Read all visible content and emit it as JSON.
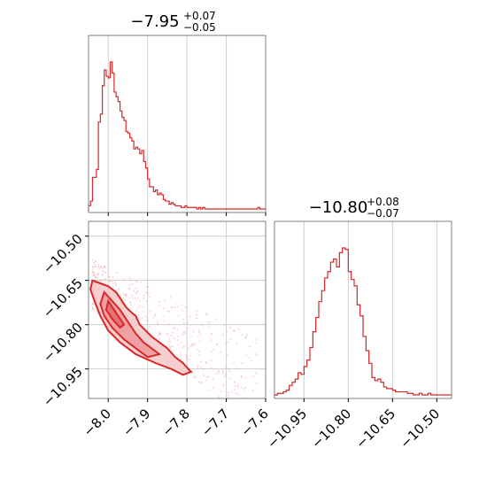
{
  "chart_data": [
    {
      "type": "histogram",
      "panel": "top-left",
      "title": {
        "value": "−7.95",
        "upper": "+0.07",
        "lower": "−0.05"
      },
      "x_range": [
        -8.05,
        -7.6
      ],
      "x_ticks": [
        -8.0,
        -7.9,
        -7.8,
        -7.7,
        -7.6
      ],
      "grid": true,
      "color": "#d62728",
      "bin_edges": [
        -8.05,
        -8.045,
        -8.04,
        -8.035,
        -8.03,
        -8.025,
        -8.02,
        -8.015,
        -8.01,
        -8.005,
        -8.0,
        -7.995,
        -7.99,
        -7.985,
        -7.98,
        -7.975,
        -7.97,
        -7.965,
        -7.96,
        -7.955,
        -7.95,
        -7.945,
        -7.94,
        -7.935,
        -7.93,
        -7.925,
        -7.92,
        -7.915,
        -7.91,
        -7.905,
        -7.9,
        -7.895,
        -7.89,
        -7.885,
        -7.88,
        -7.875,
        -7.87,
        -7.865,
        -7.86,
        -7.855,
        -7.85,
        -7.845,
        -7.84,
        -7.835,
        -7.83,
        -7.825,
        -7.82,
        -7.815,
        -7.81,
        -7.805,
        -7.8,
        -7.795,
        -7.79,
        -7.785,
        -7.78,
        -7.775,
        -7.77,
        -7.765,
        -7.76,
        -7.755,
        -7.75,
        -7.745,
        -7.74,
        -7.735,
        -7.73,
        -7.725,
        -7.72,
        -7.715,
        -7.71,
        -7.705,
        -7.7,
        -7.695,
        -7.69,
        -7.685,
        -7.68,
        -7.675,
        -7.67,
        -7.665,
        -7.66,
        -7.655,
        -7.65,
        -7.645,
        -7.64,
        -7.635,
        -7.63,
        -7.625,
        -7.62,
        -7.615,
        -7.61,
        -7.605,
        -7.6
      ],
      "counts": [
        0.02,
        0.05,
        0.2,
        0.2,
        0.25,
        0.55,
        0.6,
        0.78,
        0.88,
        0.84,
        0.83,
        0.93,
        0.86,
        0.74,
        0.71,
        0.68,
        0.62,
        0.58,
        0.56,
        0.49,
        0.48,
        0.45,
        0.43,
        0.38,
        0.39,
        0.38,
        0.35,
        0.37,
        0.3,
        0.26,
        0.19,
        0.14,
        0.14,
        0.11,
        0.12,
        0.09,
        0.1,
        0.09,
        0.06,
        0.05,
        0.05,
        0.03,
        0.04,
        0.03,
        0.02,
        0.02,
        0.02,
        0.01,
        0.01,
        0.02,
        0.01,
        0.01,
        0.01,
        0.01,
        0.01,
        0.0,
        0.01,
        0.0,
        0.01,
        0.0,
        0.0,
        0.0,
        0.0,
        0.0,
        0.0,
        0.0,
        0.0,
        0.0,
        0.0,
        0.0,
        0.0,
        0.0,
        0.0,
        0.0,
        0.0,
        0.0,
        0.0,
        0.0,
        0.0,
        0.0,
        0.0,
        0.0,
        0.0,
        0.0,
        0.0,
        0.0,
        0.01,
        0.0,
        0.0,
        0.0
      ]
    },
    {
      "type": "histogram",
      "panel": "bottom-right",
      "title": {
        "value": "−10.80",
        "upper": "+0.08",
        "lower": "−0.07"
      },
      "x_range": [
        -11.05,
        -10.45
      ],
      "x_ticks": [
        -10.95,
        -10.8,
        -10.65,
        -10.5
      ],
      "x_tick_labels": [
        "−10.95",
        "−10.80",
        "−10.65",
        "−10.50"
      ],
      "grid": true,
      "color": "#d62728",
      "bin_edges": [
        -11.05,
        -11.04,
        -11.03,
        -11.02,
        -11.01,
        -11.0,
        -10.99,
        -10.98,
        -10.97,
        -10.96,
        -10.95,
        -10.94,
        -10.93,
        -10.92,
        -10.91,
        -10.9,
        -10.89,
        -10.88,
        -10.87,
        -10.86,
        -10.85,
        -10.84,
        -10.83,
        -10.82,
        -10.81,
        -10.8,
        -10.79,
        -10.78,
        -10.77,
        -10.76,
        -10.75,
        -10.74,
        -10.73,
        -10.72,
        -10.71,
        -10.7,
        -10.69,
        -10.68,
        -10.67,
        -10.66,
        -10.65,
        -10.64,
        -10.63,
        -10.62,
        -10.61,
        -10.6,
        -10.59,
        -10.58,
        -10.57,
        -10.56,
        -10.55,
        -10.54,
        -10.53,
        -10.52,
        -10.51,
        -10.5,
        -10.49,
        -10.48,
        -10.47,
        -10.46,
        -10.45
      ],
      "counts": [
        0.0,
        0.01,
        0.01,
        0.02,
        0.03,
        0.06,
        0.08,
        0.1,
        0.14,
        0.13,
        0.18,
        0.22,
        0.3,
        0.4,
        0.49,
        0.59,
        0.66,
        0.74,
        0.78,
        0.84,
        0.86,
        0.81,
        0.9,
        0.93,
        0.92,
        0.78,
        0.73,
        0.69,
        0.57,
        0.5,
        0.37,
        0.28,
        0.2,
        0.11,
        0.09,
        0.1,
        0.08,
        0.05,
        0.04,
        0.04,
        0.03,
        0.02,
        0.02,
        0.02,
        0.02,
        0.01,
        0.01,
        0.0,
        0.0,
        0.01,
        0.0,
        0.0,
        0.01,
        0.0,
        0.0,
        0.0,
        0.0,
        0.0,
        0.0,
        0.0
      ]
    },
    {
      "type": "scatter",
      "panel": "bottom-left",
      "subtype": "2d-density-contour",
      "x_range": [
        -8.05,
        -7.6
      ],
      "y_range": [
        -11.05,
        -10.45
      ],
      "x_ticks": [
        -8.0,
        -7.9,
        -7.8,
        -7.7,
        -7.6
      ],
      "y_ticks": [
        -10.5,
        -10.65,
        -10.8,
        -10.95
      ],
      "y_tick_labels": [
        "−10.50",
        "−10.65",
        "−10.80",
        "−10.95"
      ],
      "grid": true,
      "color": "#d62728",
      "contour_outer": [
        [
          -8.04,
          -10.65
        ],
        [
          -8.02,
          -10.66
        ],
        [
          -8.0,
          -10.67
        ],
        [
          -7.98,
          -10.69
        ],
        [
          -7.97,
          -10.71
        ],
        [
          -7.955,
          -10.74
        ],
        [
          -7.94,
          -10.76
        ],
        [
          -7.93,
          -10.77
        ],
        [
          -7.92,
          -10.8
        ],
        [
          -7.89,
          -10.84
        ],
        [
          -7.87,
          -10.86
        ],
        [
          -7.85,
          -10.88
        ],
        [
          -7.83,
          -10.91
        ],
        [
          -7.81,
          -10.93
        ],
        [
          -7.79,
          -10.96
        ],
        [
          -7.81,
          -10.97
        ],
        [
          -7.84,
          -10.95
        ],
        [
          -7.88,
          -10.93
        ],
        [
          -7.93,
          -10.9
        ],
        [
          -7.97,
          -10.86
        ],
        [
          -8.0,
          -10.82
        ],
        [
          -8.02,
          -10.77
        ],
        [
          -8.035,
          -10.72
        ],
        [
          -8.045,
          -10.68
        ],
        [
          -8.04,
          -10.65
        ]
      ],
      "contour_inner": [
        [
          -8.01,
          -10.69
        ],
        [
          -7.99,
          -10.72
        ],
        [
          -7.97,
          -10.75
        ],
        [
          -7.95,
          -10.79
        ],
        [
          -7.93,
          -10.83
        ],
        [
          -7.91,
          -10.86
        ],
        [
          -7.89,
          -10.88
        ],
        [
          -7.87,
          -10.9
        ],
        [
          -7.9,
          -10.91
        ],
        [
          -7.93,
          -10.88
        ],
        [
          -7.96,
          -10.85
        ],
        [
          -7.99,
          -10.81
        ],
        [
          -8.01,
          -10.77
        ],
        [
          -8.02,
          -10.73
        ],
        [
          -8.01,
          -10.69
        ]
      ],
      "contour_core": [
        [
          -8.0,
          -10.72
        ],
        [
          -7.98,
          -10.76
        ],
        [
          -7.96,
          -10.8
        ],
        [
          -7.97,
          -10.81
        ],
        [
          -7.99,
          -10.78
        ],
        [
          -8.005,
          -10.75
        ],
        [
          -8.0,
          -10.72
        ]
      ]
    }
  ]
}
